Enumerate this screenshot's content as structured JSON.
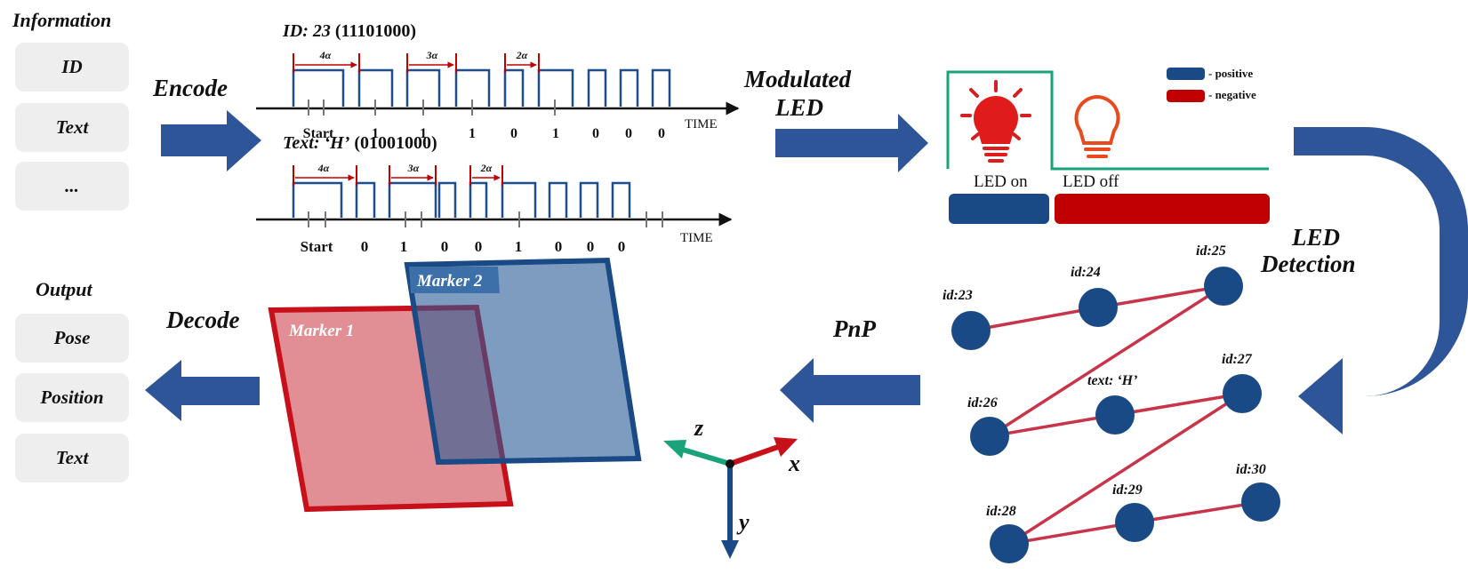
{
  "information": {
    "title": "Information",
    "items": [
      "ID",
      "Text",
      "..."
    ]
  },
  "output": {
    "title": "Output",
    "items": [
      "Pose",
      "Position",
      "Text"
    ]
  },
  "steps": {
    "encode": "Encode",
    "modulated_line1": "Modulated",
    "modulated_line2": "LED",
    "led_detection_line1": "LED",
    "led_detection_line2": "Detection",
    "pnp": "PnP",
    "decode": "Decode"
  },
  "signal_id": {
    "title_prefix": "ID: 23",
    "title_bits": "(11101000)",
    "bits": [
      "Start",
      "1",
      "1",
      "1",
      "0",
      "1",
      "0",
      "0",
      "0"
    ],
    "intervals": [
      "4α",
      "3α",
      "2α"
    ],
    "axis_label": "TIME"
  },
  "signal_text": {
    "title_prefix": "Text: ‘H’",
    "title_bits": "(01001000)",
    "bits": [
      "Start",
      "0",
      "1",
      "0",
      "0",
      "1",
      "0",
      "0",
      "0"
    ],
    "intervals": [
      "4α",
      "3α",
      "2α"
    ],
    "axis_label": "TIME"
  },
  "led_panel": {
    "legend_positive": "- positive",
    "legend_negative": "- negative",
    "led_on": "LED on",
    "led_off": "LED off",
    "positive_color": "#1a4a85",
    "negative_color": "#c00000",
    "line_color": "#1aa37a"
  },
  "markers": {
    "marker1": "Marker 1",
    "marker2": "Marker 2"
  },
  "axes": {
    "x": "x",
    "y": "y",
    "z": "z"
  },
  "nodes": {
    "labels": [
      "id:23",
      "id:24",
      "id:25",
      "id:26",
      "text: ‘H’",
      "id:27",
      "id:28",
      "id:29",
      "id:30"
    ]
  }
}
